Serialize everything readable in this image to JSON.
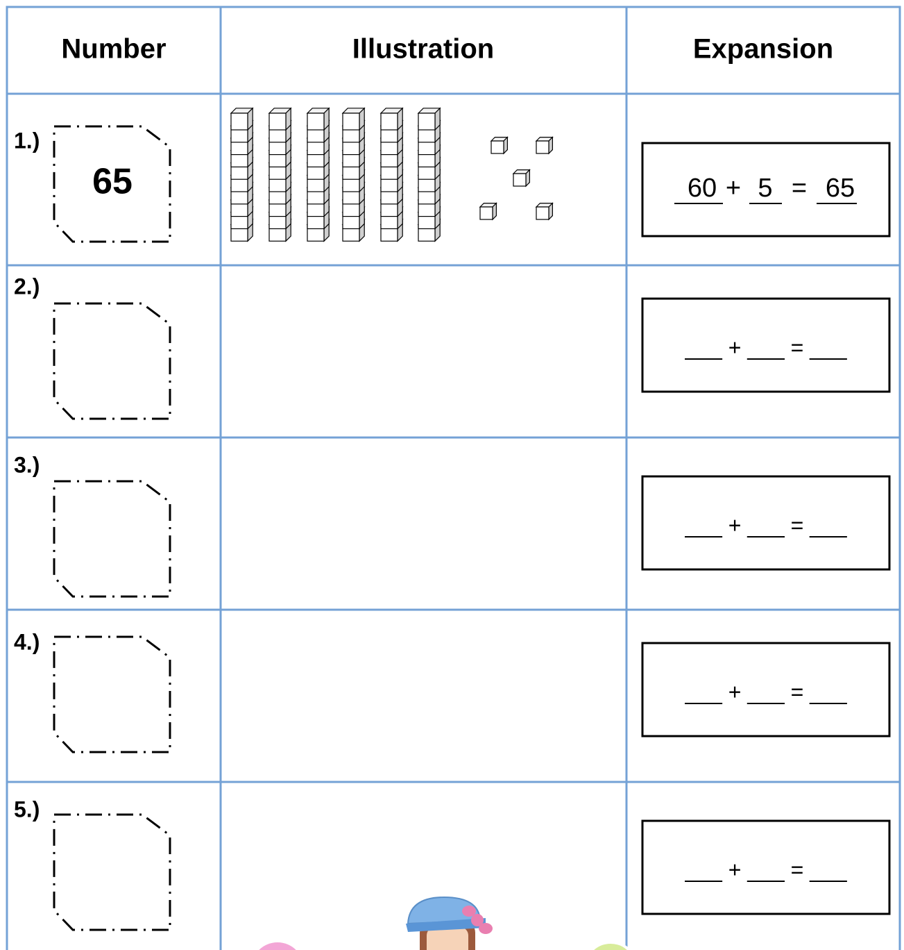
{
  "header": {
    "columns": [
      "Number",
      "Illustration",
      "Expansion"
    ]
  },
  "rows": [
    {
      "label": "1.)",
      "number": "65",
      "expansion": {
        "tens": "60",
        "plus": "+",
        "ones": "5",
        "equals": "=",
        "total": "65"
      }
    },
    {
      "label": "2.)",
      "expansion": "___ + ___ = ___"
    },
    {
      "label": "3.)",
      "expansion": "___ + ___ = ___"
    },
    {
      "label": "4.)",
      "expansion": "___ + ___ = ___"
    },
    {
      "label": "5.)",
      "expansion": "___ + ___ = ___"
    }
  ]
}
